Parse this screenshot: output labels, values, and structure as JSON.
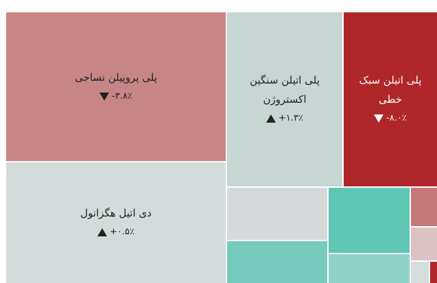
{
  "tiles": [
    {
      "name": "پلی پروپیلن نساجی",
      "change": "-۳.۸٪",
      "direction": "down",
      "color": "#c88585"
    },
    {
      "name": "پلی اتیلن سنگین اکستروژن",
      "change": "+۱.۳٪",
      "direction": "up",
      "color": "#c5d6d3"
    },
    {
      "name": "پلی اتیلن سبک خطی",
      "change": "-۸.۰٪",
      "direction": "down",
      "color": "#b0272a"
    },
    {
      "name": "دی اتیل هگزانول",
      "change": "+۰.۵٪",
      "direction": "up",
      "color": "#d4dbdb"
    },
    {
      "color": "#d5d9d9"
    },
    {
      "color": "#76cbbc"
    },
    {
      "color": "#5ec6b3"
    },
    {
      "color": "#8fd0c5"
    },
    {
      "color": "#c57878"
    },
    {
      "color": "#dcc2c2"
    },
    {
      "color": "#d4dcdc"
    },
    {
      "color": "#b0272a"
    }
  ]
}
